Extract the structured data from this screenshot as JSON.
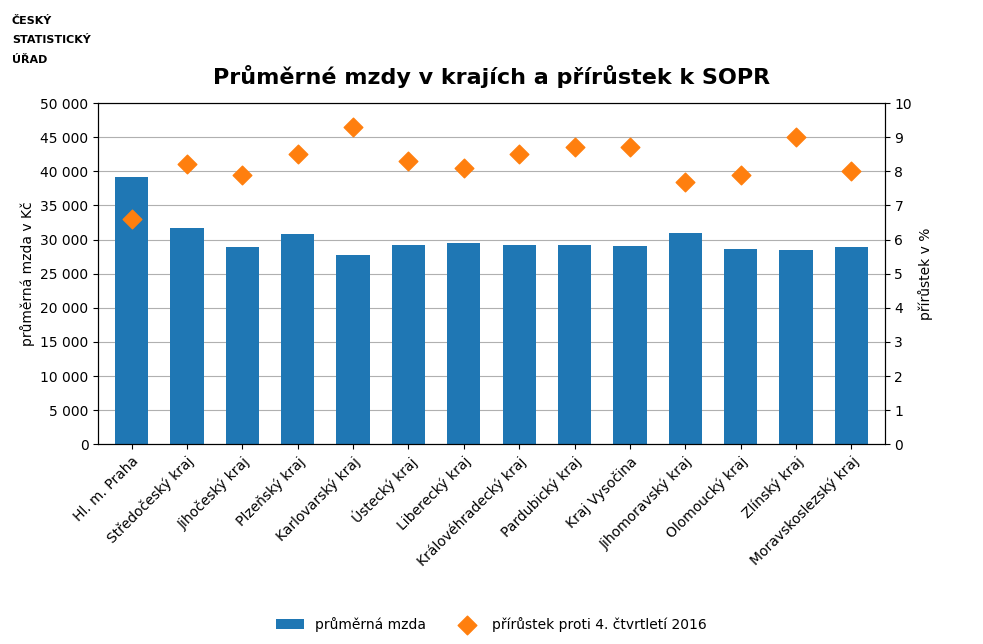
{
  "chart_data": {
    "type": "bar",
    "title": "Průměrné mzdy v krajích a přírůstek k SOPR",
    "annotations": [
      "ČESKÝ",
      "STATISTICKÝ",
      "ÚŘAD"
    ],
    "categories": [
      "Hl. m. Praha",
      "Středočeský kraj",
      "Jihočeský kraj",
      "Plzeňský kraj",
      "Karlovarský kraj",
      "Ústecký kraj",
      "Liberecký kraj",
      "Královéhradecký kraj",
      "Pardubický kraj",
      "Kraj Vysočina",
      "Jihomoravský kraj",
      "Olomoucký kraj",
      "Zlínský kraj",
      "Moravskoslezský kraj"
    ],
    "series": [
      {
        "name": "průměrná mzda",
        "type": "bar",
        "values": [
          39200,
          31700,
          28900,
          30800,
          27800,
          29200,
          29500,
          29200,
          29200,
          29100,
          30900,
          28600,
          28500,
          28900
        ]
      },
      {
        "name": "přírůstek proti 4. čtvrtletí 2016",
        "type": "scatter",
        "marker": "diamond",
        "axis": "y2",
        "values": [
          6.6,
          8.2,
          7.9,
          8.5,
          9.3,
          8.3,
          8.1,
          8.5,
          8.7,
          8.7,
          7.7,
          7.9,
          9.0,
          8.0
        ]
      }
    ],
    "ylabel": "průměrná mzda v Kč",
    "y2label": "přírůstek v %",
    "ylim": [
      0,
      50000
    ],
    "yticks": [
      0,
      {
        "value": 5000,
        "label": "5 000"
      },
      {
        "value": 10000,
        "label": "10 000"
      },
      {
        "value": 15000,
        "label": "15 000"
      },
      {
        "value": 20000,
        "label": "20 000"
      },
      {
        "value": 25000,
        "label": "25 000"
      },
      {
        "value": 30000,
        "label": "30 000"
      },
      {
        "value": 35000,
        "label": "35 000"
      },
      {
        "value": 40000,
        "label": "40 000"
      },
      {
        "value": 45000,
        "label": "45 000"
      },
      {
        "value": 50000,
        "label": "50 000"
      }
    ],
    "y2lim": [
      0,
      10
    ],
    "y2ticks": [
      0,
      1,
      2,
      3,
      4,
      5,
      6,
      7,
      8,
      9,
      10
    ],
    "grid": true,
    "legend": "lower center"
  }
}
